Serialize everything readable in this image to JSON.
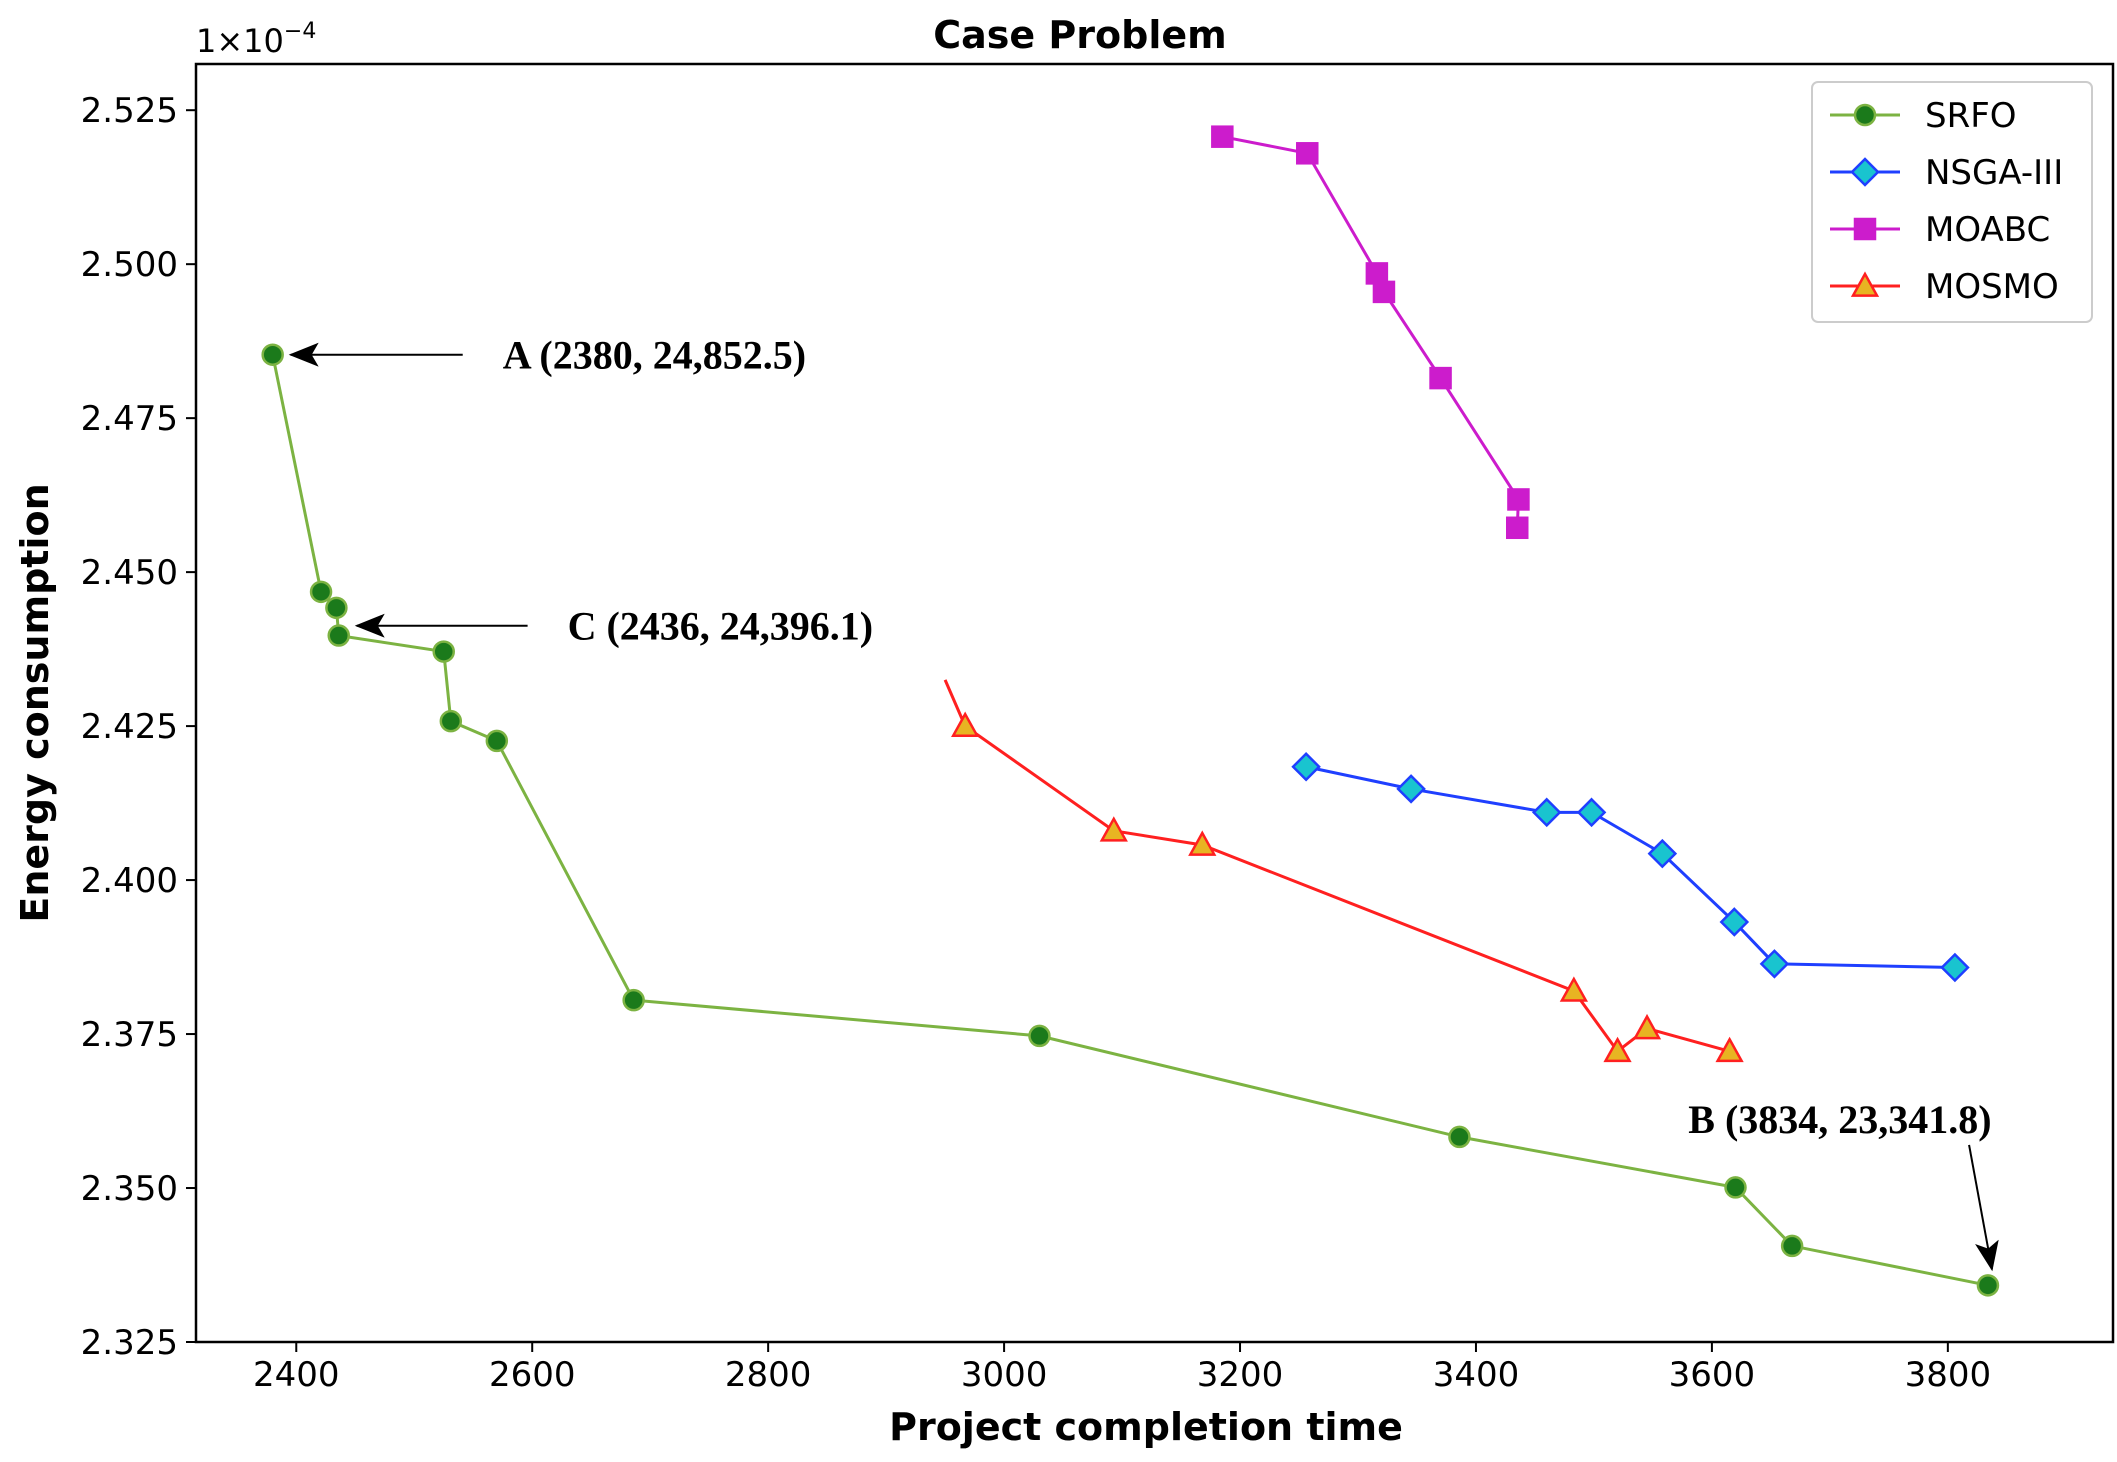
{
  "chart_data": {
    "type": "line",
    "title": "Case Problem",
    "xlabel": "Project completion time",
    "ylabel": "Energy consumption",
    "y_multiplier_base": "1×10",
    "y_multiplier_exp": "−4",
    "xlim": [
      2315,
      3940
    ],
    "ylim": [
      2.325,
      2.5325
    ],
    "x_ticks": [
      2400,
      2600,
      2800,
      3000,
      3200,
      3400,
      3600,
      3800
    ],
    "y_ticks": [
      2.325,
      2.35,
      2.375,
      2.4,
      2.425,
      2.45,
      2.475,
      2.5,
      2.525
    ],
    "y_tick_labels": [
      "2.325",
      "2.350",
      "2.375",
      "2.400",
      "2.425",
      "2.450",
      "2.475",
      "2.500",
      "2.525"
    ],
    "legend_position": "top-right",
    "series": [
      {
        "name": "SRFO",
        "color": "#7cb342",
        "marker": "circle",
        "marker_fill": "#1b7a1b",
        "x": [
          2380,
          2421,
          2434,
          2436,
          2525,
          2531,
          2570,
          2686,
          3030,
          3386,
          3620,
          3668,
          3834
        ],
        "y": [
          2.4853,
          2.4468,
          2.4442,
          2.4397,
          2.4371,
          2.4258,
          2.4226,
          2.3805,
          2.3747,
          2.3583,
          2.3501,
          2.3406,
          2.3342
        ]
      },
      {
        "name": "NSGA-III",
        "color": "#1f3fff",
        "marker": "diamond",
        "marker_fill": "#19c4cf",
        "x": [
          3256,
          3345,
          3460,
          3498,
          3558,
          3619,
          3653,
          3806
        ],
        "y": [
          2.4184,
          2.4148,
          2.411,
          2.411,
          2.4043,
          2.3932,
          2.3864,
          2.3858
        ]
      },
      {
        "name": "MOABC",
        "color": "#cc1ccc",
        "marker": "square",
        "marker_fill": "#cc1ccc",
        "x": [
          3185,
          3257,
          3316,
          3322,
          3370,
          3436,
          3435
        ],
        "y": [
          2.5207,
          2.518,
          2.4985,
          2.4955,
          2.4815,
          2.4618,
          2.4572
        ]
      },
      {
        "name": "MOSMO",
        "color": "#ff2020",
        "marker": "triangle",
        "marker_fill": "#e8b422",
        "lead_in": {
          "x": 2950,
          "y": 2.4325
        },
        "x": [
          2967,
          3093,
          3168,
          3483,
          3520,
          3545,
          3615
        ],
        "y": [
          2.425,
          2.408,
          2.4057,
          2.382,
          2.3722,
          2.3759,
          2.3722
        ]
      }
    ],
    "annotations": [
      {
        "label": "A (2380, 24,852.5)",
        "target_x": 2380,
        "target_y": 2.4853,
        "text_x": 2575,
        "text_y": 2.4853,
        "anchor": "start"
      },
      {
        "label": "C (2436, 24,396.1)",
        "target_x": 2436,
        "target_y": 2.4413,
        "text_x": 2630,
        "text_y": 2.4413,
        "anchor": "start"
      },
      {
        "label": "B (3834, 23,341.8)",
        "target_x": 3834,
        "target_y": 2.3342,
        "text_x": 3580,
        "text_y": 2.3612,
        "anchor": "start"
      }
    ]
  }
}
